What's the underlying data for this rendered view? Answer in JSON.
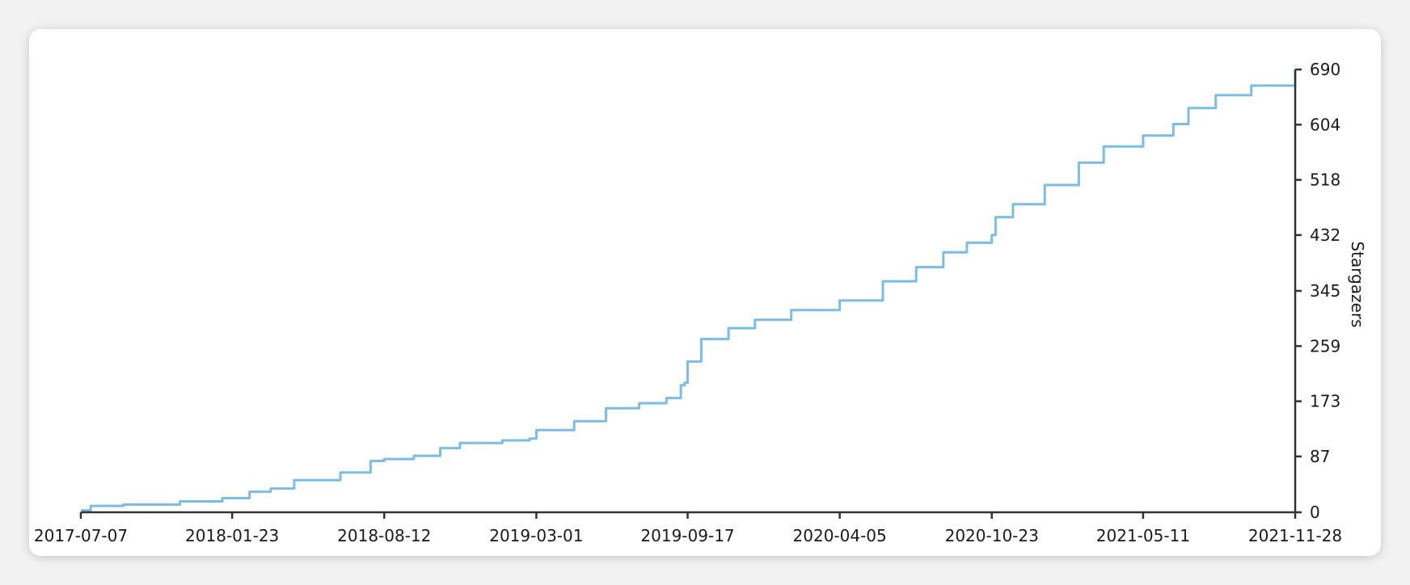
{
  "chart_data": {
    "type": "line",
    "title": "",
    "xlabel": "",
    "ylabel": "Stargazers",
    "x_ticks": [
      "2017-07-07",
      "2018-01-23",
      "2018-08-12",
      "2019-03-01",
      "2019-09-17",
      "2020-04-05",
      "2020-10-23",
      "2021-05-11",
      "2021-11-28"
    ],
    "y_ticks": [
      0,
      87,
      173,
      259,
      345,
      432,
      518,
      604,
      690
    ],
    "xlim": [
      "2017-07-07",
      "2021-11-28"
    ],
    "ylim": [
      0,
      690
    ],
    "y_axis_side": "right",
    "grid": false,
    "line_color": "#7bbde6",
    "axis_color": "#333333",
    "series": [
      {
        "x": [
          "2017-07-07",
          "2017-07-20",
          "2017-09-01",
          "2017-11-15",
          "2018-01-10",
          "2018-02-15",
          "2018-03-15",
          "2018-04-15",
          "2018-06-15",
          "2018-07-25",
          "2018-08-12",
          "2018-09-20",
          "2018-10-25",
          "2018-11-20",
          "2019-01-15",
          "2019-02-20",
          "2019-03-01",
          "2019-04-20",
          "2019-06-01",
          "2019-07-15",
          "2019-08-20",
          "2019-09-08",
          "2019-09-13",
          "2019-09-17",
          "2019-10-05",
          "2019-11-10",
          "2019-12-15",
          "2020-02-01",
          "2020-04-05",
          "2020-06-01",
          "2020-07-15",
          "2020-08-20",
          "2020-09-20",
          "2020-10-23",
          "2020-10-28",
          "2020-11-20",
          "2021-01-01",
          "2021-02-15",
          "2021-03-20",
          "2021-05-11",
          "2021-06-20",
          "2021-07-10",
          "2021-08-15",
          "2021-10-01",
          "2021-11-28"
        ],
        "y": [
          3,
          10,
          12,
          17,
          22,
          32,
          37,
          50,
          62,
          80,
          83,
          88,
          100,
          108,
          112,
          115,
          128,
          142,
          162,
          170,
          178,
          198,
          202,
          235,
          270,
          287,
          300,
          315,
          330,
          360,
          382,
          405,
          420,
          432,
          460,
          480,
          510,
          545,
          570,
          587,
          605,
          630,
          650,
          665,
          690
        ]
      }
    ]
  }
}
